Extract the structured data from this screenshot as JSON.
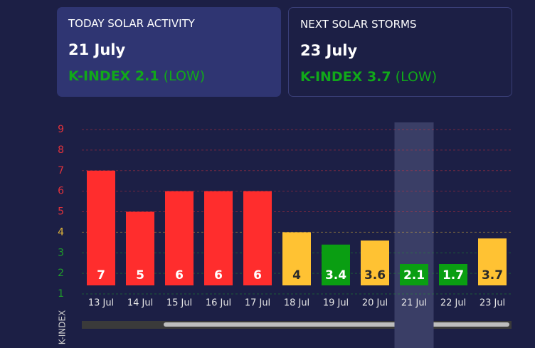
{
  "cards": [
    {
      "heading": "TODAY SOLAR ACTIVITY",
      "date": "21 July",
      "index": "K-INDEX 2.1",
      "level": "(LOW)"
    },
    {
      "heading": "NEXT SOLAR STORMS",
      "date": "23 July",
      "index": "K-INDEX 3.7",
      "level": "(LOW)"
    }
  ],
  "chart_data": {
    "type": "bar",
    "y_label": "K-INDEX",
    "categories": [
      "13 Jul",
      "14 Jul",
      "15 Jul",
      "16 Jul",
      "17 Jul",
      "18 Jul",
      "19 Jul",
      "20 Jul",
      "21 Jul",
      "22 Jul",
      "23 Jul"
    ],
    "values": [
      7,
      5,
      6,
      6,
      6,
      4,
      3.4,
      3.6,
      2.1,
      1.7,
      3.7
    ],
    "colors": [
      "#ff2d2d",
      "#ff2d2d",
      "#ff2d2d",
      "#ff2d2d",
      "#ff2d2d",
      "#ffc233",
      "#0a9e12",
      "#ffc233",
      "#0a9e12",
      "#0a9e12",
      "#ffc233"
    ],
    "highlight_index": 8,
    "ylim": [
      1,
      9
    ],
    "yticks": [
      1,
      2,
      3,
      4,
      5,
      6,
      7,
      8,
      9
    ],
    "tick_colors": [
      "#1f9e2a",
      "#1f9e2a",
      "#1f9e2a",
      "#e0b53a",
      "#e0323c",
      "#e0323c",
      "#e0323c",
      "#e0323c",
      "#e0323c"
    ],
    "grid": true
  }
}
